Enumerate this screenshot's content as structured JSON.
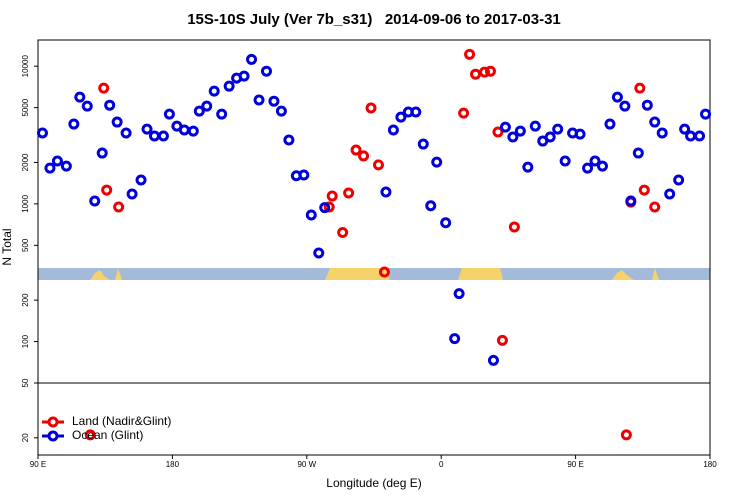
{
  "chart_data": {
    "type": "scatter",
    "title": "15S-10S July (Ver 7b_s31)   2014-09-06 to 2017-03-31",
    "xlabel": "Longitude (deg E)",
    "ylabel": "N Total",
    "xlim": [
      90,
      540
    ],
    "xticks": [
      {
        "value": 90,
        "label": "90 E"
      },
      180,
      {
        "value": 270,
        "label": "90 W"
      },
      {
        "value": 360,
        "label": "0"
      },
      {
        "value": 450,
        "label": "90 E"
      },
      {
        "value": 540,
        "label": "180"
      }
    ],
    "ylim": [
      15,
      15500
    ],
    "log_y": true,
    "yticks": [
      20,
      50,
      100,
      200,
      500,
      1000,
      2000,
      5000,
      10000
    ],
    "hline": 50,
    "legend": "lower left",
    "series": [
      {
        "name": "Land (Nadir&Glint)",
        "color": "#ee0000",
        "x": [
          125,
          134,
          136,
          144,
          285,
          287,
          294,
          298,
          303,
          308,
          313,
          318,
          322,
          375,
          379,
          383,
          389,
          393,
          398,
          401,
          409,
          484,
          487,
          493,
          496,
          503
        ],
        "values": [
          21,
          6930,
          1260,
          950,
          950,
          1140,
          620,
          1200,
          2460,
          2230,
          4970,
          1920,
          320,
          4560,
          12200,
          8750,
          9060,
          9200,
          3330,
          102,
          680,
          21,
          1030,
          6930,
          1260,
          950
        ]
      },
      {
        "name": "Ocean (Glint)",
        "color": "#0000dd",
        "x": [
          93,
          98,
          103,
          109,
          114,
          118,
          123,
          128,
          133,
          138,
          143,
          149,
          153,
          159,
          163,
          168,
          174,
          178,
          183,
          188,
          194,
          198,
          203,
          208,
          213,
          218,
          223,
          228,
          233,
          238,
          243,
          248,
          253,
          258,
          263,
          268,
          273,
          278,
          282,
          323,
          328,
          333,
          338,
          343,
          348,
          353,
          357,
          363,
          369,
          372,
          395,
          403,
          408,
          413,
          418,
          423,
          428,
          433,
          438,
          443,
          448,
          453,
          458,
          463,
          468,
          473,
          478,
          483,
          487,
          492,
          498,
          503,
          508,
          513,
          519,
          523,
          527,
          533,
          537
        ],
        "values": [
          3270,
          1820,
          2050,
          1880,
          3800,
          5960,
          5130,
          1050,
          2340,
          5210,
          3930,
          3270,
          1180,
          1490,
          3490,
          3110,
          3110,
          4490,
          3670,
          3440,
          3380,
          4720,
          5130,
          6590,
          4490,
          7160,
          8190,
          8470,
          11200,
          5680,
          9200,
          5570,
          4720,
          2910,
          1600,
          1620,
          830,
          440,
          940,
          1220,
          3440,
          4270,
          4650,
          4650,
          2720,
          970,
          2010,
          730,
          105,
          223,
          73,
          3610,
          3060,
          3380,
          1850,
          3670,
          2860,
          3060,
          3490,
          2050,
          3270,
          3210,
          1820,
          2050,
          1880,
          3800,
          5960,
          5130,
          1050,
          2340,
          5210,
          3930,
          3270,
          1180,
          1490,
          3490,
          3110,
          3110,
          4490
        ]
      }
    ]
  }
}
